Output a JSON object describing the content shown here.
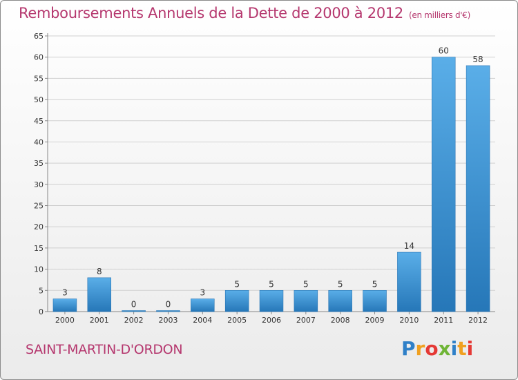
{
  "header": {
    "title": "Remboursements Annuels de la Dette de 2000 à 2012",
    "unit": "(en milliers d'€)"
  },
  "footer": {
    "commune": "SAINT-MARTIN-D'ORDON",
    "brand": {
      "letters": [
        "P",
        "r",
        "o",
        "x",
        "i",
        "t",
        "i"
      ],
      "colors": [
        "#2f80c8",
        "#f0a020",
        "#e53935",
        "#6fb536",
        "#2f80c8",
        "#f0a020",
        "#e53935"
      ]
    }
  },
  "chart_data": {
    "type": "bar",
    "title": "Remboursements Annuels de la Dette de 2000 à 2012",
    "categories": [
      "2000",
      "2001",
      "2002",
      "2003",
      "2004",
      "2005",
      "2006",
      "2007",
      "2008",
      "2009",
      "2010",
      "2011",
      "2012"
    ],
    "values": [
      3,
      8,
      0,
      0,
      3,
      5,
      5,
      5,
      5,
      5,
      14,
      60,
      58
    ],
    "ylim": [
      0,
      65
    ],
    "yticks": [
      0,
      5,
      10,
      15,
      20,
      25,
      30,
      35,
      40,
      45,
      50,
      55,
      60,
      65
    ],
    "grid": true,
    "bar_color": "#3b8fd4",
    "legend": "none"
  }
}
